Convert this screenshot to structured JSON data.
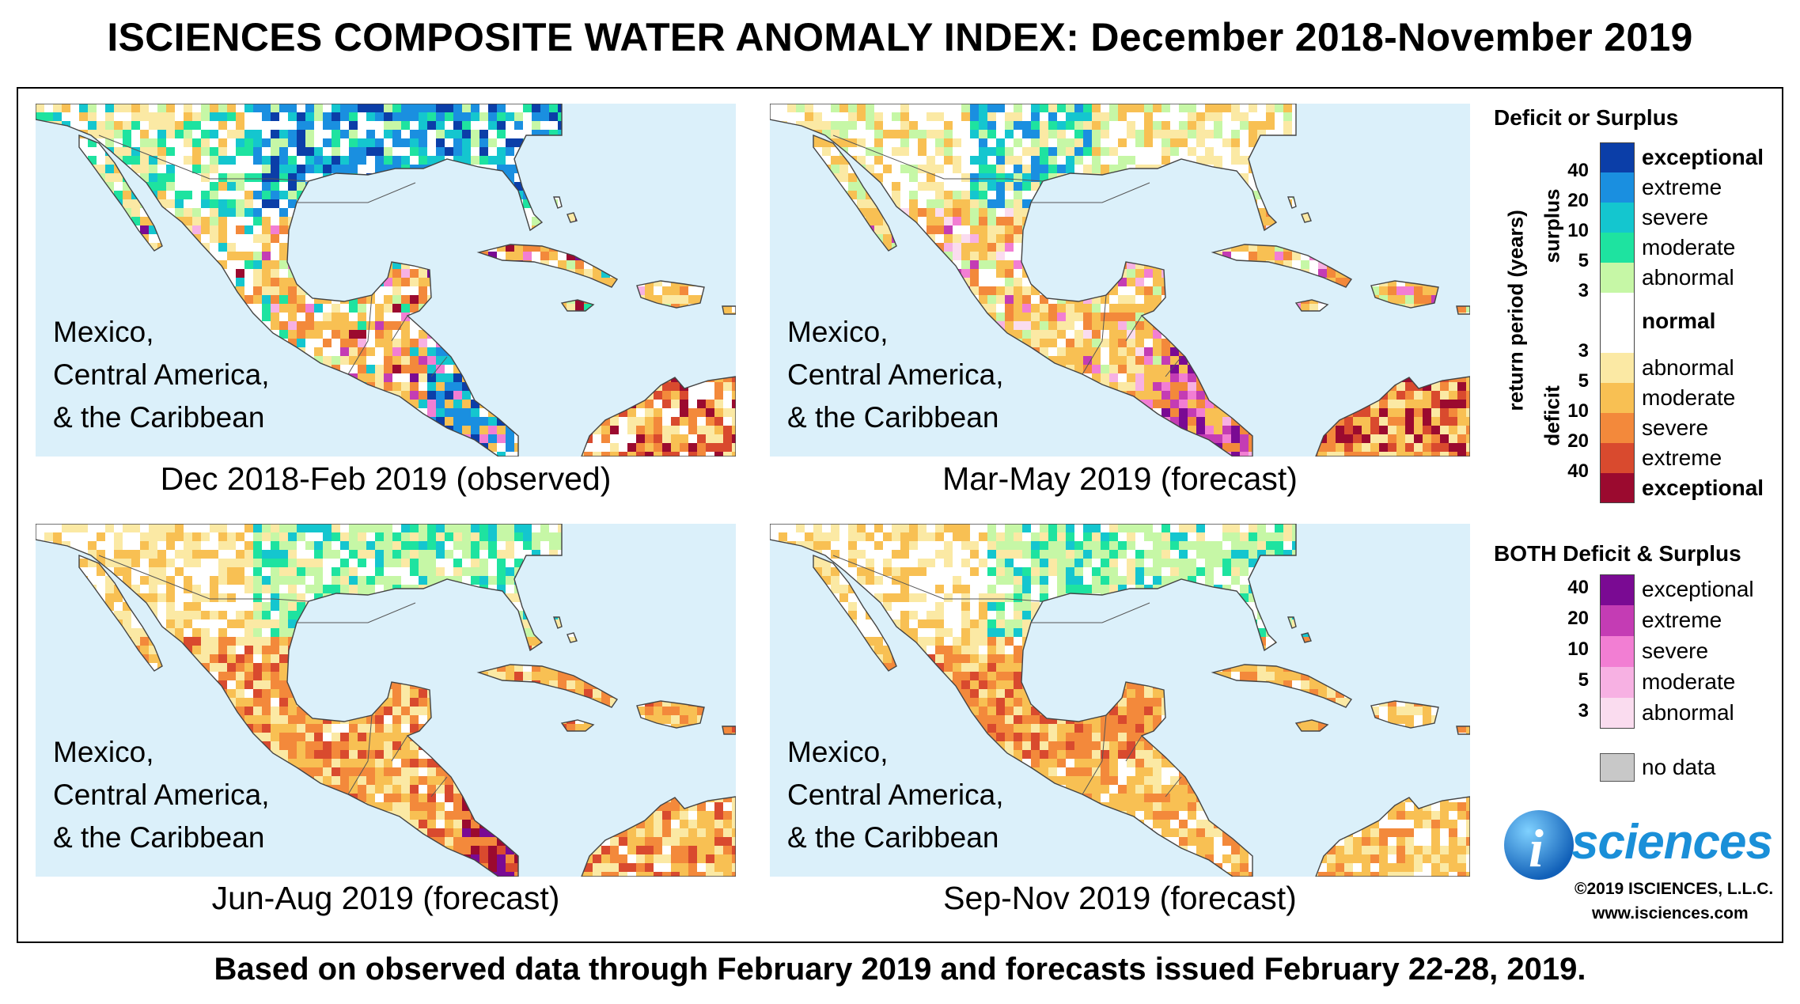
{
  "title": "ISCIENCES COMPOSITE WATER ANOMALY INDEX: December 2018-November 2019",
  "footer": "Based on observed data through February 2019 and forecasts issued February 22-28, 2019.",
  "region_label": "Mexico,\nCentral America,\n& the Caribbean",
  "panels": [
    {
      "caption": "Dec 2018-Feb 2019 (observed)",
      "pattern": "surplus-north"
    },
    {
      "caption": "Mar-May 2019 (forecast)",
      "pattern": "mixed-spring"
    },
    {
      "caption": "Jun-Aug 2019 (forecast)",
      "pattern": "deficit-summer"
    },
    {
      "caption": "Sep-Nov 2019 (forecast)",
      "pattern": "deficit-fall"
    }
  ],
  "legend": {
    "deficit_surplus": {
      "title": "Deficit or Surplus",
      "surplus_axis": "surplus",
      "deficit_axis": "deficit",
      "return_period_axis": "return period (years)",
      "surplus_items": [
        {
          "label": "exceptional",
          "color": "#0b3ea8",
          "bold": true
        },
        {
          "label": "extreme",
          "color": "#1a8fe0",
          "bold": false
        },
        {
          "label": "severe",
          "color": "#14c6cf",
          "bold": false
        },
        {
          "label": "moderate",
          "color": "#1ee3a0",
          "bold": false
        },
        {
          "label": "abnormal",
          "color": "#c6f7a6",
          "bold": false
        }
      ],
      "normal": {
        "label": "normal",
        "color": "#ffffff"
      },
      "deficit_items": [
        {
          "label": "abnormal",
          "color": "#fbe9a4",
          "bold": false
        },
        {
          "label": "moderate",
          "color": "#f8c053",
          "bold": false
        },
        {
          "label": "severe",
          "color": "#f3893b",
          "bold": false
        },
        {
          "label": "extreme",
          "color": "#d94a2e",
          "bold": false
        },
        {
          "label": "exceptional",
          "color": "#9b0a2f",
          "bold": true
        }
      ],
      "surplus_ticks": [
        "40",
        "20",
        "10",
        "5",
        "3"
      ],
      "deficit_ticks": [
        "3",
        "5",
        "10",
        "20",
        "40"
      ]
    },
    "both": {
      "title": "BOTH Deficit & Surplus",
      "items": [
        {
          "label": "exceptional",
          "color": "#7a0a93"
        },
        {
          "label": "extreme",
          "color": "#c43cb4"
        },
        {
          "label": "severe",
          "color": "#f27ed3"
        },
        {
          "label": "moderate",
          "color": "#f7b1e3"
        },
        {
          "label": "abnormal",
          "color": "#fadcef"
        }
      ],
      "ticks": [
        "40",
        "20",
        "10",
        "5",
        "3"
      ]
    },
    "no_data": {
      "label": "no data",
      "color": "#c8c8c8"
    }
  },
  "logo": {
    "mark": "i",
    "text": "sciences"
  },
  "copyright": "©2019 ISCIENCES, L.L.C.",
  "url": "www.isciences.com"
}
